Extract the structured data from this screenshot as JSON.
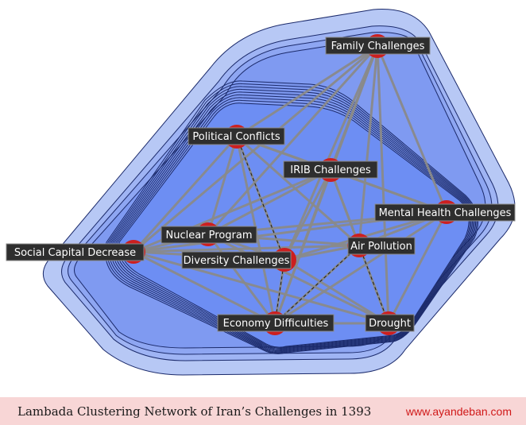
{
  "nodes": [
    {
      "id": "family",
      "label": "Family  Challenges"
    },
    {
      "id": "political",
      "label": "Political Conflicts"
    },
    {
      "id": "irib",
      "label": "IRIB  Challenges"
    },
    {
      "id": "mental",
      "label": "Mental Health  Challenges"
    },
    {
      "id": "nuclear",
      "label": "Nuclear Program"
    },
    {
      "id": "social",
      "label": "Social Capital  Decrease"
    },
    {
      "id": "diversity",
      "label": "Diversity Challenges"
    },
    {
      "id": "air",
      "label": "Air Pollution"
    },
    {
      "id": "economy",
      "label": "Economy  Difficulties"
    },
    {
      "id": "drought",
      "label": "Drought"
    }
  ],
  "edges": [
    [
      "family",
      "political"
    ],
    [
      "family",
      "irib"
    ],
    [
      "family",
      "mental"
    ],
    [
      "family",
      "nuclear"
    ],
    [
      "family",
      "social"
    ],
    [
      "family",
      "diversity"
    ],
    [
      "family",
      "air"
    ],
    [
      "family",
      "economy"
    ],
    [
      "family",
      "drought"
    ],
    [
      "political",
      "irib"
    ],
    [
      "political",
      "mental"
    ],
    [
      "political",
      "nuclear"
    ],
    [
      "political",
      "social"
    ],
    [
      "political",
      "diversity"
    ],
    [
      "political",
      "economy"
    ],
    [
      "political",
      "air"
    ],
    [
      "irib",
      "mental"
    ],
    [
      "irib",
      "nuclear"
    ],
    [
      "irib",
      "social"
    ],
    [
      "irib",
      "diversity"
    ],
    [
      "irib",
      "air"
    ],
    [
      "irib",
      "economy"
    ],
    [
      "irib",
      "drought"
    ],
    [
      "mental",
      "nuclear"
    ],
    [
      "mental",
      "social"
    ],
    [
      "mental",
      "diversity"
    ],
    [
      "mental",
      "air"
    ],
    [
      "mental",
      "economy"
    ],
    [
      "mental",
      "drought"
    ],
    [
      "nuclear",
      "social"
    ],
    [
      "nuclear",
      "diversity"
    ],
    [
      "nuclear",
      "air"
    ],
    [
      "nuclear",
      "economy"
    ],
    [
      "nuclear",
      "drought"
    ],
    [
      "social",
      "diversity"
    ],
    [
      "social",
      "air"
    ],
    [
      "social",
      "economy"
    ],
    [
      "social",
      "drought"
    ],
    [
      "diversity",
      "air"
    ],
    [
      "diversity",
      "economy"
    ],
    [
      "diversity",
      "drought"
    ],
    [
      "air",
      "economy"
    ],
    [
      "air",
      "drought"
    ],
    [
      "economy",
      "drought"
    ]
  ],
  "dashed_edges": [
    [
      "political",
      "diversity"
    ],
    [
      "diversity",
      "economy"
    ],
    [
      "air",
      "drought"
    ],
    [
      "economy",
      "air"
    ]
  ],
  "colors": {
    "cluster_outer": "#b7c8f5",
    "cluster_inner": "#6f8ff0",
    "cluster_stroke": "#1b2a6b",
    "edge": "#8a8a8a",
    "node": "#cc1f1f"
  },
  "footer": {
    "caption": "Lambada Clustering Network of Iran’s Challenges in 1393",
    "site": "www.ayandeban.com"
  }
}
